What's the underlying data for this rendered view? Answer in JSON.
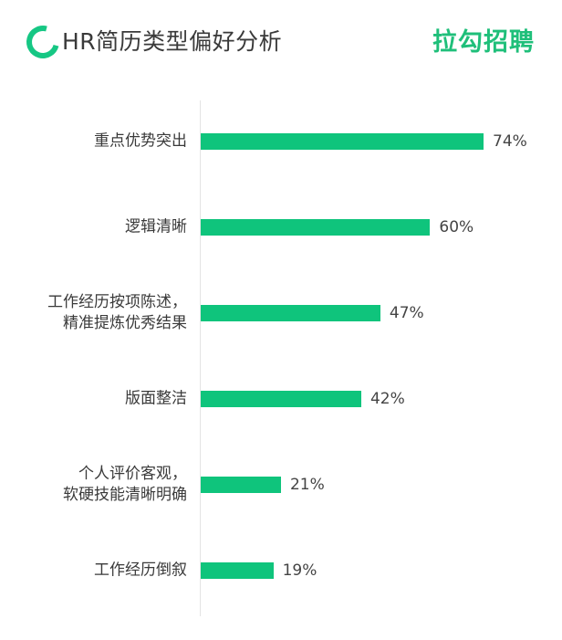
{
  "header": {
    "title": "HR简历类型偏好分析",
    "brand": "拉勾招聘"
  },
  "colors": {
    "bar": "#0fc47c",
    "brand": "#1fbf7a"
  },
  "chart_data": {
    "type": "bar",
    "orientation": "horizontal",
    "title": "HR简历类型偏好分析",
    "categories": [
      [
        "重点优势突出"
      ],
      [
        "逻辑清晰"
      ],
      [
        "工作经历按项陈述，",
        "精准提炼优秀结果"
      ],
      [
        "版面整洁"
      ],
      [
        "个人评价客观，",
        "软硬技能清晰明确"
      ],
      [
        "工作经历倒叙"
      ]
    ],
    "values": [
      74,
      60,
      47,
      42,
      21,
      19
    ],
    "data_labels": [
      "74%",
      "60%",
      "47%",
      "42%",
      "21%",
      "19%"
    ],
    "unit": "%",
    "grid": false
  }
}
